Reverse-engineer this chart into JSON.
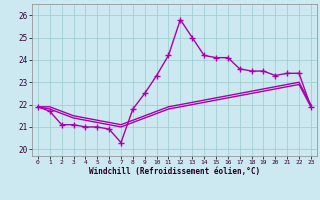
{
  "xlabel": "Windchill (Refroidissement éolien,°C)",
  "bg_color": "#cce8f0",
  "grid_color": "#99cccc",
  "line_color": "#aa00aa",
  "x_ticks": [
    0,
    1,
    2,
    3,
    4,
    5,
    6,
    7,
    8,
    9,
    10,
    11,
    12,
    13,
    14,
    15,
    16,
    17,
    18,
    19,
    20,
    21,
    22,
    23
  ],
  "y_ticks": [
    20,
    21,
    22,
    23,
    24,
    25,
    26
  ],
  "xlim": [
    -0.5,
    23.5
  ],
  "ylim": [
    19.7,
    26.5
  ],
  "series": [
    {
      "x": [
        0,
        1,
        2,
        3,
        4,
        5,
        6,
        7,
        8,
        9,
        10,
        11,
        12,
        13,
        14,
        15,
        16,
        17,
        18,
        19,
        20,
        21,
        22,
        23
      ],
      "y": [
        21.9,
        21.7,
        21.1,
        21.1,
        21.0,
        21.0,
        20.9,
        20.3,
        21.8,
        22.5,
        23.3,
        24.2,
        25.8,
        25.0,
        24.2,
        24.1,
        24.1,
        23.6,
        23.5,
        23.5,
        23.3,
        23.4,
        23.4,
        21.9
      ],
      "marker": "+",
      "markersize": 4,
      "markeredgewidth": 1.0,
      "linewidth": 1.0,
      "linestyle": "-"
    },
    {
      "x": [
        0,
        1,
        2,
        3,
        4,
        5,
        6,
        7,
        8,
        9,
        10,
        11,
        12,
        13,
        14,
        15,
        16,
        17,
        18,
        19,
        20,
        21,
        22,
        23
      ],
      "y": [
        21.9,
        21.9,
        21.7,
        21.5,
        21.4,
        21.3,
        21.2,
        21.1,
        21.3,
        21.5,
        21.7,
        21.9,
        22.0,
        22.1,
        22.2,
        22.3,
        22.4,
        22.5,
        22.6,
        22.7,
        22.8,
        22.9,
        23.0,
        22.0
      ],
      "marker": null,
      "linewidth": 1.0,
      "linestyle": "-"
    },
    {
      "x": [
        0,
        1,
        2,
        3,
        4,
        5,
        6,
        7,
        8,
        9,
        10,
        11,
        12,
        13,
        14,
        15,
        16,
        17,
        18,
        19,
        20,
        21,
        22,
        23
      ],
      "y": [
        21.9,
        21.8,
        21.6,
        21.4,
        21.3,
        21.2,
        21.1,
        21.0,
        21.2,
        21.4,
        21.6,
        21.8,
        21.9,
        22.0,
        22.1,
        22.2,
        22.3,
        22.4,
        22.5,
        22.6,
        22.7,
        22.8,
        22.9,
        21.9
      ],
      "marker": null,
      "linewidth": 1.0,
      "linestyle": "-"
    }
  ],
  "figwidth": 3.2,
  "figheight": 2.0,
  "dpi": 100
}
